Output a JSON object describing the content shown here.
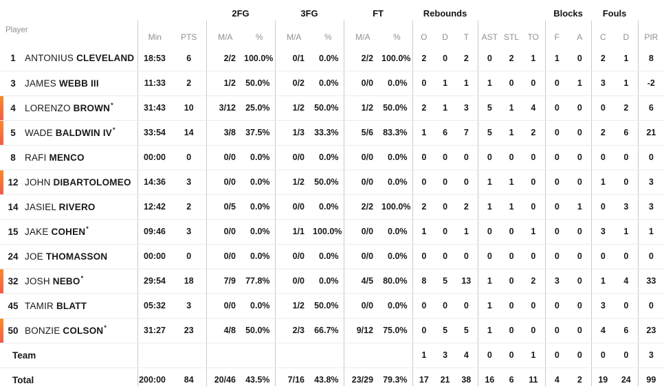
{
  "accent": {
    "marker_top": "#fb8a24",
    "marker_bottom": "#f75a48"
  },
  "table": {
    "corner_label": "Player",
    "groups": [
      {
        "label": "",
        "span": 1
      },
      {
        "label": "",
        "span": 2
      },
      {
        "label": "2FG",
        "span": 2
      },
      {
        "label": "3FG",
        "span": 2
      },
      {
        "label": "FT",
        "span": 2
      },
      {
        "label": "Rebounds",
        "span": 3
      },
      {
        "label": "",
        "span": 3
      },
      {
        "label": "Blocks",
        "span": 2
      },
      {
        "label": "Fouls",
        "span": 2
      },
      {
        "label": "",
        "span": 1
      }
    ],
    "columns": [
      {
        "key": "min",
        "label": "Min"
      },
      {
        "key": "pts",
        "label": "PTS"
      },
      {
        "key": "fg2_ma",
        "label": "M/A"
      },
      {
        "key": "fg2_pct",
        "label": "%"
      },
      {
        "key": "fg3_ma",
        "label": "M/A"
      },
      {
        "key": "fg3_pct",
        "label": "%"
      },
      {
        "key": "ft_ma",
        "label": "M/A"
      },
      {
        "key": "ft_pct",
        "label": "%"
      },
      {
        "key": "reb_o",
        "label": "O"
      },
      {
        "key": "reb_d",
        "label": "D"
      },
      {
        "key": "reb_t",
        "label": "T"
      },
      {
        "key": "ast",
        "label": "AST"
      },
      {
        "key": "stl",
        "label": "STL"
      },
      {
        "key": "to",
        "label": "TO"
      },
      {
        "key": "blk_f",
        "label": "F"
      },
      {
        "key": "blk_a",
        "label": "A"
      },
      {
        "key": "foul_c",
        "label": "C"
      },
      {
        "key": "foul_d",
        "label": "D"
      },
      {
        "key": "pir",
        "label": "PIR"
      }
    ],
    "rows": [
      {
        "type": "player",
        "number": "1",
        "first_name": "ANTONIUS",
        "last_name": "CLEVELAND",
        "starter_mark": "",
        "on_court": false,
        "stats": {
          "min": "18:53",
          "pts": "6",
          "fg2_ma": "2/2",
          "fg2_pct": "100.0%",
          "fg3_ma": "0/1",
          "fg3_pct": "0.0%",
          "ft_ma": "2/2",
          "ft_pct": "100.0%",
          "reb_o": "2",
          "reb_d": "0",
          "reb_t": "2",
          "ast": "0",
          "stl": "2",
          "to": "1",
          "blk_f": "1",
          "blk_a": "0",
          "foul_c": "2",
          "foul_d": "1",
          "pir": "8"
        }
      },
      {
        "type": "player",
        "number": "3",
        "first_name": "JAMES",
        "last_name": "WEBB III",
        "starter_mark": "",
        "on_court": false,
        "stats": {
          "min": "11:33",
          "pts": "2",
          "fg2_ma": "1/2",
          "fg2_pct": "50.0%",
          "fg3_ma": "0/2",
          "fg3_pct": "0.0%",
          "ft_ma": "0/0",
          "ft_pct": "0.0%",
          "reb_o": "0",
          "reb_d": "1",
          "reb_t": "1",
          "ast": "1",
          "stl": "0",
          "to": "0",
          "blk_f": "0",
          "blk_a": "1",
          "foul_c": "3",
          "foul_d": "1",
          "pir": "-2"
        }
      },
      {
        "type": "player",
        "number": "4",
        "first_name": "LORENZO",
        "last_name": "BROWN",
        "starter_mark": "*",
        "on_court": true,
        "stats": {
          "min": "31:43",
          "pts": "10",
          "fg2_ma": "3/12",
          "fg2_pct": "25.0%",
          "fg3_ma": "1/2",
          "fg3_pct": "50.0%",
          "ft_ma": "1/2",
          "ft_pct": "50.0%",
          "reb_o": "2",
          "reb_d": "1",
          "reb_t": "3",
          "ast": "5",
          "stl": "1",
          "to": "4",
          "blk_f": "0",
          "blk_a": "0",
          "foul_c": "0",
          "foul_d": "2",
          "pir": "6"
        }
      },
      {
        "type": "player",
        "number": "5",
        "first_name": "WADE",
        "last_name": "BALDWIN IV",
        "starter_mark": "*",
        "on_court": true,
        "stats": {
          "min": "33:54",
          "pts": "14",
          "fg2_ma": "3/8",
          "fg2_pct": "37.5%",
          "fg3_ma": "1/3",
          "fg3_pct": "33.3%",
          "ft_ma": "5/6",
          "ft_pct": "83.3%",
          "reb_o": "1",
          "reb_d": "6",
          "reb_t": "7",
          "ast": "5",
          "stl": "1",
          "to": "2",
          "blk_f": "0",
          "blk_a": "0",
          "foul_c": "2",
          "foul_d": "6",
          "pir": "21"
        }
      },
      {
        "type": "player",
        "number": "8",
        "first_name": "RAFI",
        "last_name": "MENCO",
        "starter_mark": "",
        "on_court": false,
        "stats": {
          "min": "00:00",
          "pts": "0",
          "fg2_ma": "0/0",
          "fg2_pct": "0.0%",
          "fg3_ma": "0/0",
          "fg3_pct": "0.0%",
          "ft_ma": "0/0",
          "ft_pct": "0.0%",
          "reb_o": "0",
          "reb_d": "0",
          "reb_t": "0",
          "ast": "0",
          "stl": "0",
          "to": "0",
          "blk_f": "0",
          "blk_a": "0",
          "foul_c": "0",
          "foul_d": "0",
          "pir": "0"
        }
      },
      {
        "type": "player",
        "number": "12",
        "first_name": "JOHN",
        "last_name": "DIBARTOLOMEO",
        "starter_mark": "",
        "on_court": true,
        "stats": {
          "min": "14:36",
          "pts": "3",
          "fg2_ma": "0/0",
          "fg2_pct": "0.0%",
          "fg3_ma": "1/2",
          "fg3_pct": "50.0%",
          "ft_ma": "0/0",
          "ft_pct": "0.0%",
          "reb_o": "0",
          "reb_d": "0",
          "reb_t": "0",
          "ast": "1",
          "stl": "1",
          "to": "0",
          "blk_f": "0",
          "blk_a": "0",
          "foul_c": "1",
          "foul_d": "0",
          "pir": "3"
        }
      },
      {
        "type": "player",
        "number": "14",
        "first_name": "JASIEL",
        "last_name": "RIVERO",
        "starter_mark": "",
        "on_court": false,
        "stats": {
          "min": "12:42",
          "pts": "2",
          "fg2_ma": "0/5",
          "fg2_pct": "0.0%",
          "fg3_ma": "0/0",
          "fg3_pct": "0.0%",
          "ft_ma": "2/2",
          "ft_pct": "100.0%",
          "reb_o": "2",
          "reb_d": "0",
          "reb_t": "2",
          "ast": "1",
          "stl": "1",
          "to": "0",
          "blk_f": "0",
          "blk_a": "1",
          "foul_c": "0",
          "foul_d": "3",
          "pir": "3"
        }
      },
      {
        "type": "player",
        "number": "15",
        "first_name": "JAKE",
        "last_name": "COHEN",
        "starter_mark": "*",
        "on_court": false,
        "stats": {
          "min": "09:46",
          "pts": "3",
          "fg2_ma": "0/0",
          "fg2_pct": "0.0%",
          "fg3_ma": "1/1",
          "fg3_pct": "100.0%",
          "ft_ma": "0/0",
          "ft_pct": "0.0%",
          "reb_o": "1",
          "reb_d": "0",
          "reb_t": "1",
          "ast": "0",
          "stl": "0",
          "to": "1",
          "blk_f": "0",
          "blk_a": "0",
          "foul_c": "3",
          "foul_d": "1",
          "pir": "1"
        }
      },
      {
        "type": "player",
        "number": "24",
        "first_name": "JOE",
        "last_name": "THOMASSON",
        "starter_mark": "",
        "on_court": false,
        "stats": {
          "min": "00:00",
          "pts": "0",
          "fg2_ma": "0/0",
          "fg2_pct": "0.0%",
          "fg3_ma": "0/0",
          "fg3_pct": "0.0%",
          "ft_ma": "0/0",
          "ft_pct": "0.0%",
          "reb_o": "0",
          "reb_d": "0",
          "reb_t": "0",
          "ast": "0",
          "stl": "0",
          "to": "0",
          "blk_f": "0",
          "blk_a": "0",
          "foul_c": "0",
          "foul_d": "0",
          "pir": "0"
        }
      },
      {
        "type": "player",
        "number": "32",
        "first_name": "JOSH",
        "last_name": "NEBO",
        "starter_mark": "*",
        "on_court": true,
        "stats": {
          "min": "29:54",
          "pts": "18",
          "fg2_ma": "7/9",
          "fg2_pct": "77.8%",
          "fg3_ma": "0/0",
          "fg3_pct": "0.0%",
          "ft_ma": "4/5",
          "ft_pct": "80.0%",
          "reb_o": "8",
          "reb_d": "5",
          "reb_t": "13",
          "ast": "1",
          "stl": "0",
          "to": "2",
          "blk_f": "3",
          "blk_a": "0",
          "foul_c": "1",
          "foul_d": "4",
          "pir": "33"
        }
      },
      {
        "type": "player",
        "number": "45",
        "first_name": "TAMIR",
        "last_name": "BLATT",
        "starter_mark": "",
        "on_court": false,
        "stats": {
          "min": "05:32",
          "pts": "3",
          "fg2_ma": "0/0",
          "fg2_pct": "0.0%",
          "fg3_ma": "1/2",
          "fg3_pct": "50.0%",
          "ft_ma": "0/0",
          "ft_pct": "0.0%",
          "reb_o": "0",
          "reb_d": "0",
          "reb_t": "0",
          "ast": "1",
          "stl": "0",
          "to": "0",
          "blk_f": "0",
          "blk_a": "0",
          "foul_c": "3",
          "foul_d": "0",
          "pir": "0"
        }
      },
      {
        "type": "player",
        "number": "50",
        "first_name": "BONZIE",
        "last_name": "COLSON",
        "starter_mark": "*",
        "on_court": true,
        "stats": {
          "min": "31:27",
          "pts": "23",
          "fg2_ma": "4/8",
          "fg2_pct": "50.0%",
          "fg3_ma": "2/3",
          "fg3_pct": "66.7%",
          "ft_ma": "9/12",
          "ft_pct": "75.0%",
          "reb_o": "0",
          "reb_d": "5",
          "reb_t": "5",
          "ast": "1",
          "stl": "0",
          "to": "0",
          "blk_f": "0",
          "blk_a": "0",
          "foul_c": "4",
          "foul_d": "6",
          "pir": "23"
        }
      },
      {
        "type": "summary",
        "label": "Team",
        "on_court": false,
        "stats": {
          "min": "",
          "pts": "",
          "fg2_ma": "",
          "fg2_pct": "",
          "fg3_ma": "",
          "fg3_pct": "",
          "ft_ma": "",
          "ft_pct": "",
          "reb_o": "1",
          "reb_d": "3",
          "reb_t": "4",
          "ast": "0",
          "stl": "0",
          "to": "1",
          "blk_f": "0",
          "blk_a": "0",
          "foul_c": "0",
          "foul_d": "0",
          "pir": "3"
        }
      },
      {
        "type": "summary",
        "label": "Total",
        "on_court": false,
        "stats": {
          "min": "200:00",
          "pts": "84",
          "fg2_ma": "20/46",
          "fg2_pct": "43.5%",
          "fg3_ma": "7/16",
          "fg3_pct": "43.8%",
          "ft_ma": "23/29",
          "ft_pct": "79.3%",
          "reb_o": "17",
          "reb_d": "21",
          "reb_t": "38",
          "ast": "16",
          "stl": "6",
          "to": "11",
          "blk_f": "4",
          "blk_a": "2",
          "foul_c": "19",
          "foul_d": "24",
          "pir": "99"
        }
      }
    ]
  }
}
